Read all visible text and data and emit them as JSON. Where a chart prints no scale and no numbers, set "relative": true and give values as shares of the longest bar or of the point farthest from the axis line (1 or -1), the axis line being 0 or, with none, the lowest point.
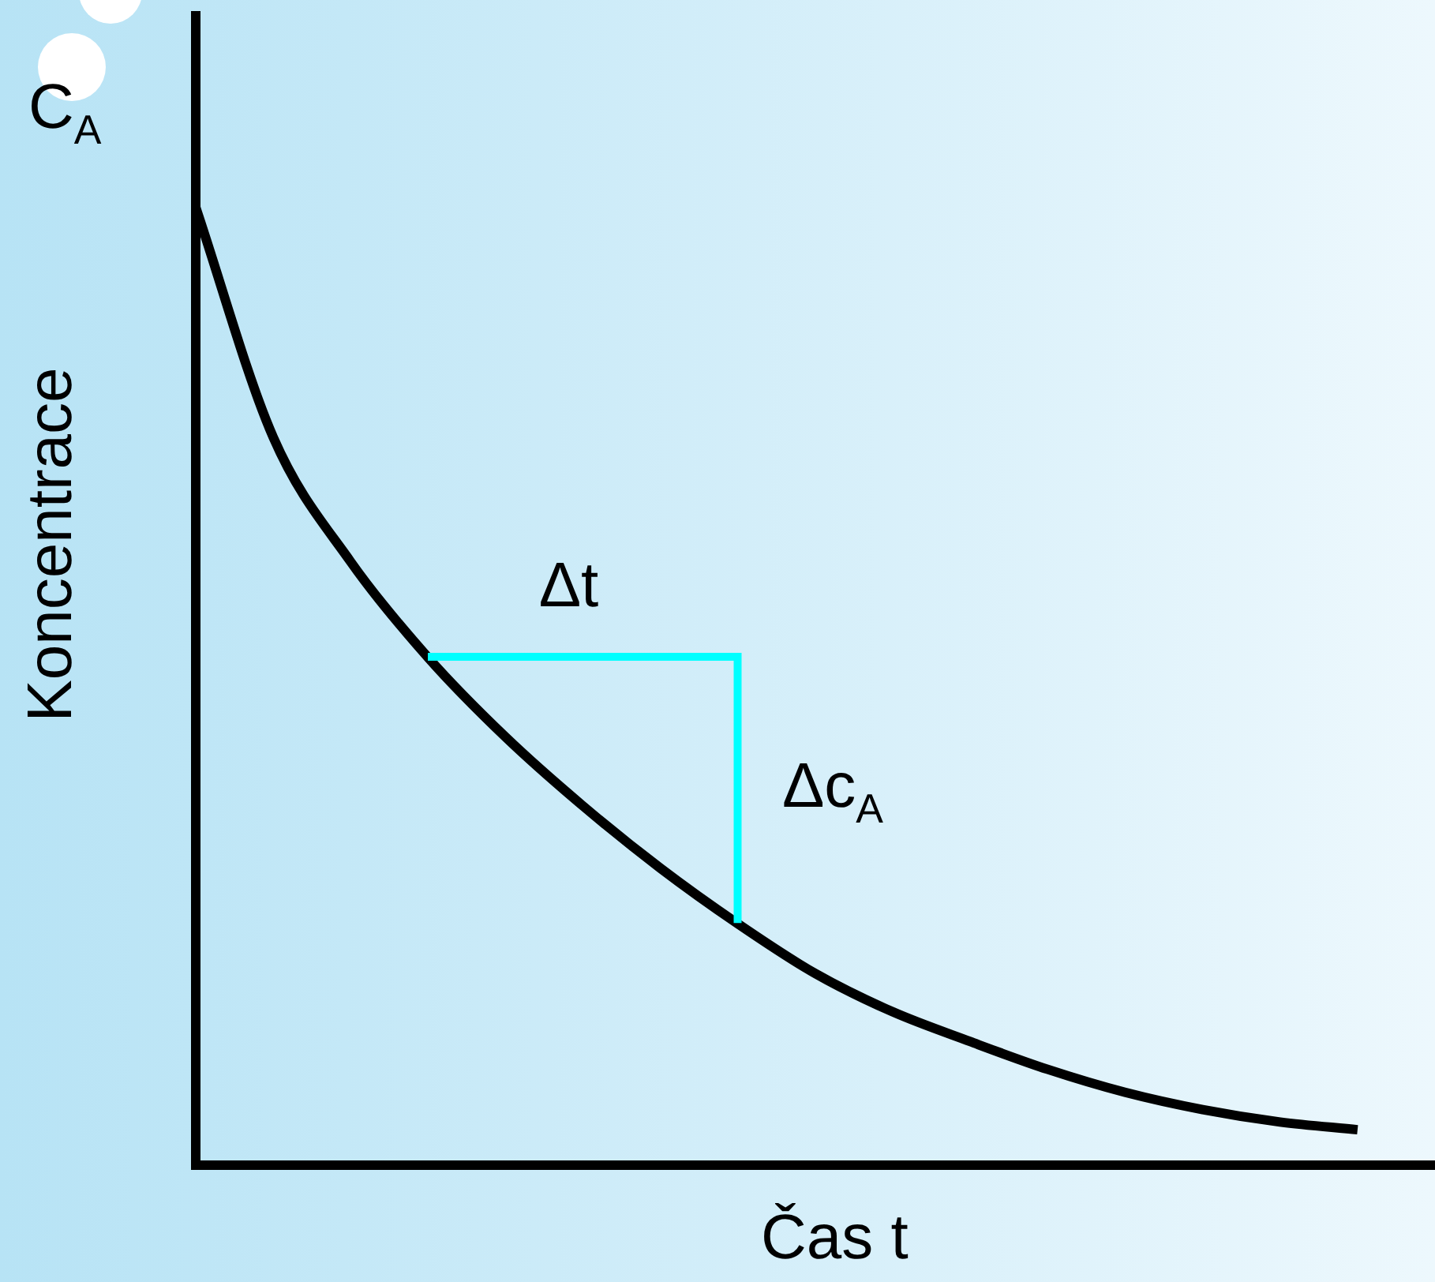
{
  "chart_data": {
    "type": "line",
    "relative": true,
    "ylabel": "Koncentrace",
    "xlabel": "Čas t",
    "annotations": [
      "C$_{A}$",
      "Δt",
      "Δc$_{A}$"
    ],
    "categories": [
      null,
      null,
      null,
      null,
      null,
      null,
      null,
      null,
      null,
      null,
      null,
      null,
      null,
      null,
      null,
      null,
      null
    ],
    "series": [
      {
        "color": "#000000",
        "values": [
          1.0,
          0.76,
          0.63,
          0.53,
          0.447,
          0.375,
          0.31,
          0.252,
          0.2,
          0.16,
          0.129,
          0.1,
          0.076,
          0.058,
          0.045,
          0.037,
          null
        ]
      }
    ],
    "tick_labels": false,
    "grid": false
  }
}
